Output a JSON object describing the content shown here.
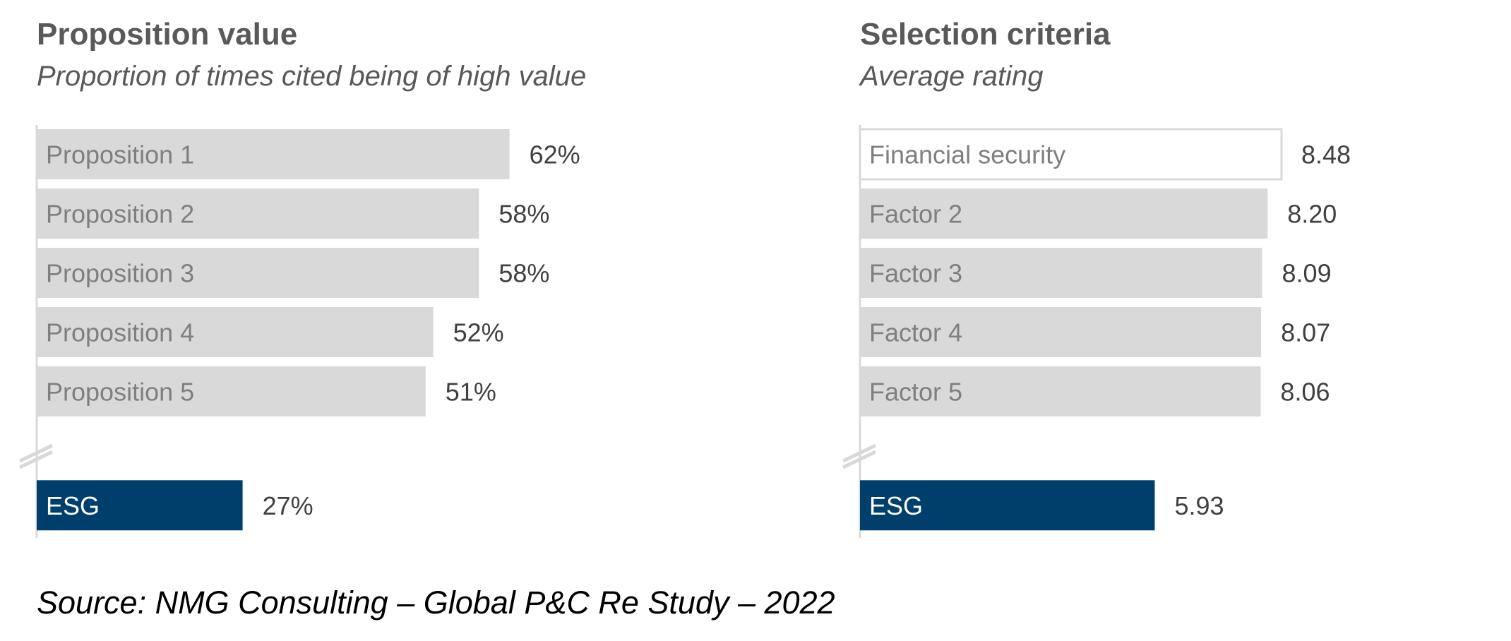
{
  "colors": {
    "bar_default": "#d9d9d9",
    "bar_highlight": "#003f6b",
    "bar_outline_fill": "#ffffff",
    "bar_outline_stroke": "#d9d9d9",
    "label_on_default": "#7f7f7f",
    "label_on_highlight": "#ffffff",
    "value_label": "#404040",
    "axis": "#d9d9d9",
    "title": "#595959"
  },
  "chart_data": [
    {
      "type": "bar",
      "orientation": "horizontal",
      "title": "Proposition value",
      "subtitle": "Proportion of times cited being of high value",
      "categories": [
        "Proposition 1",
        "Proposition 2",
        "Proposition 3",
        "Proposition 4",
        "Proposition 5",
        "ESG"
      ],
      "values": [
        62,
        58,
        58,
        52,
        51,
        27
      ],
      "value_labels": [
        "62%",
        "58%",
        "58%",
        "52%",
        "51%",
        "27%"
      ],
      "highlight": [
        "ESG"
      ],
      "axis_break_before": "ESG",
      "xlim": [
        0,
        100
      ],
      "grid": false,
      "legend": "none"
    },
    {
      "type": "bar",
      "orientation": "horizontal",
      "title": "Selection criteria",
      "subtitle": "Average rating",
      "categories": [
        "Financial security",
        "Factor 2",
        "Factor 3",
        "Factor 4",
        "Factor 5",
        "ESG"
      ],
      "values": [
        8.48,
        8.2,
        8.09,
        8.07,
        8.06,
        5.93
      ],
      "value_labels": [
        "8.48",
        "8.20",
        "8.09",
        "8.07",
        "8.06",
        "5.93"
      ],
      "highlight": [
        "ESG"
      ],
      "outlined": [
        "Financial security"
      ],
      "axis_break_before": "ESG",
      "xlim": [
        0,
        14.3
      ],
      "grid": false,
      "legend": "none"
    }
  ],
  "source": "Source: NMG Consulting – Global P&C Re Study – 2022"
}
